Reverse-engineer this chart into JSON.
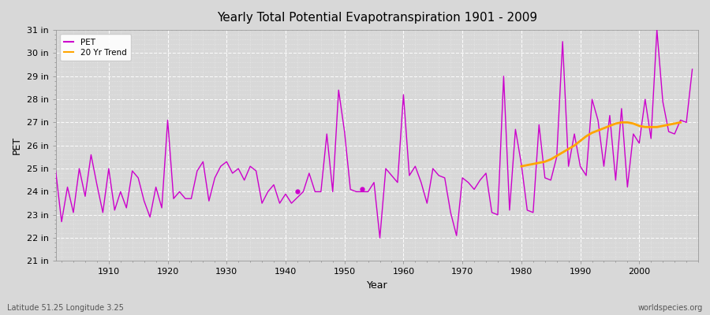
{
  "title": "Yearly Total Potential Evapotranspiration 1901 - 2009",
  "ylabel": "PET",
  "xlabel": "Year",
  "lat_lon_label": "Latitude 51.25 Longitude 3.25",
  "watermark": "worldspecies.org",
  "pet_color": "#cc00cc",
  "trend_color": "#FFA500",
  "bg_color": "#d8d8d8",
  "plot_bg_color": "#d8d8d8",
  "ylim_min": 21,
  "ylim_max": 31,
  "years": [
    1901,
    1902,
    1903,
    1904,
    1905,
    1906,
    1907,
    1908,
    1909,
    1910,
    1911,
    1912,
    1913,
    1914,
    1915,
    1916,
    1917,
    1918,
    1919,
    1920,
    1921,
    1922,
    1923,
    1924,
    1925,
    1926,
    1927,
    1928,
    1929,
    1930,
    1931,
    1932,
    1933,
    1934,
    1935,
    1936,
    1937,
    1938,
    1939,
    1940,
    1941,
    1943,
    1944,
    1945,
    1946,
    1947,
    1948,
    1949,
    1950,
    1951,
    1952,
    1954,
    1955,
    1956,
    1957,
    1958,
    1959,
    1960,
    1961,
    1962,
    1963,
    1964,
    1965,
    1966,
    1967,
    1968,
    1969,
    1970,
    1971,
    1972,
    1973,
    1974,
    1975,
    1976,
    1977,
    1978,
    1979,
    1980,
    1981,
    1982,
    1983,
    1984,
    1985,
    1986,
    1987,
    1988,
    1989,
    1990,
    1991,
    1992,
    1993,
    1994,
    1995,
    1996,
    1997,
    1998,
    1999,
    2000,
    2001,
    2002,
    2003,
    2004,
    2005,
    2006,
    2007,
    2008,
    2009
  ],
  "pet_values": [
    24.9,
    22.7,
    24.2,
    23.1,
    25.0,
    23.8,
    25.6,
    24.3,
    23.1,
    25.0,
    23.2,
    24.0,
    23.3,
    24.9,
    24.6,
    23.6,
    22.9,
    24.2,
    23.3,
    27.1,
    23.7,
    24.0,
    23.7,
    23.7,
    24.9,
    25.3,
    23.6,
    24.6,
    25.1,
    25.3,
    24.8,
    25.0,
    24.5,
    25.1,
    24.9,
    23.5,
    24.0,
    24.3,
    23.5,
    23.9,
    23.5,
    24.0,
    24.8,
    24.0,
    24.0,
    26.5,
    24.0,
    28.4,
    26.6,
    24.1,
    24.0,
    24.0,
    24.4,
    22.0,
    25.0,
    24.7,
    24.4,
    28.2,
    24.7,
    25.1,
    24.4,
    23.5,
    25.0,
    24.7,
    24.6,
    23.1,
    22.1,
    24.6,
    24.4,
    24.1,
    24.5,
    24.8,
    23.1,
    23.0,
    29.0,
    23.2,
    26.7,
    25.2,
    23.2,
    23.1,
    26.9,
    24.6,
    24.5,
    25.5,
    30.5,
    25.1,
    26.5,
    25.1,
    24.7,
    28.0,
    27.1,
    25.1,
    27.3,
    24.5,
    27.6,
    24.2,
    26.5,
    26.1,
    28.0,
    26.3,
    31.0,
    27.9,
    26.6,
    26.5,
    27.1,
    27.0,
    29.3
  ],
  "isolated_points": [
    [
      1942,
      24.0
    ],
    [
      1953,
      24.1
    ]
  ],
  "trend_years": [
    1980,
    1981,
    1982,
    1983,
    1984,
    1985,
    1986,
    1987,
    1988,
    1989,
    1990,
    1991,
    1992,
    1993,
    1994,
    1995,
    1996,
    1997,
    1998,
    1999,
    2000,
    2001,
    2002,
    2003,
    2004,
    2005,
    2006,
    2007
  ],
  "trend_values": [
    25.1,
    25.15,
    25.2,
    25.25,
    25.3,
    25.4,
    25.55,
    25.7,
    25.85,
    26.0,
    26.2,
    26.4,
    26.55,
    26.65,
    26.75,
    26.85,
    26.95,
    27.0,
    27.0,
    26.95,
    26.85,
    26.8,
    26.8,
    26.8,
    26.85,
    26.9,
    26.95,
    27.0
  ],
  "ytick_labels": [
    "21 in",
    "22 in",
    "23 in",
    "24 in",
    "25 in",
    "26 in",
    "27 in",
    "28 in",
    "29 in",
    "30 in",
    "31 in"
  ],
  "ytick_values": [
    21,
    22,
    23,
    24,
    25,
    26,
    27,
    28,
    29,
    30,
    31
  ],
  "xtick_values": [
    1910,
    1920,
    1930,
    1940,
    1950,
    1960,
    1970,
    1980,
    1990,
    2000
  ]
}
